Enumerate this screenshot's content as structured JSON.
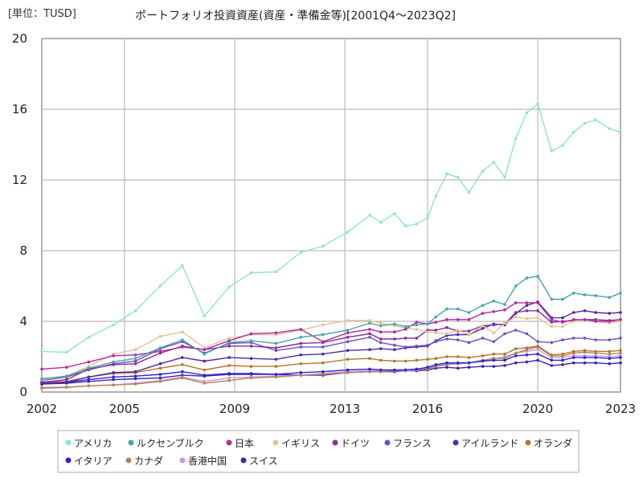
{
  "chart_data": {
    "type": "line",
    "unit_label": "[単位：TUSD]",
    "title": "ポートフォリオ投資資産(資産・準備金等)[2001Q4～2023Q2]",
    "xlim": [
      2002,
      2023
    ],
    "ylim": [
      0,
      20
    ],
    "x_ticks": [
      2002,
      2005,
      2009,
      2013,
      2016,
      2020,
      2023
    ],
    "x_tick_labels": [
      "2002",
      "2005",
      "2009",
      "2013",
      "2016",
      "2020",
      "2023"
    ],
    "y_ticks": [
      0,
      4,
      8,
      12,
      16,
      20
    ],
    "y_tick_labels": [
      "0",
      "4",
      "8",
      "12",
      "16",
      "20"
    ],
    "grid": true,
    "legend_position": "bottom",
    "series": [
      {
        "name": "アメリカ",
        "color": "#90e4cd",
        "x": [
          2002.0,
          2002.9,
          2003.7,
          2004.6,
          2005.4,
          2006.3,
          2007.1,
          2007.9,
          2008.8,
          2009.6,
          2010.5,
          2011.4,
          2012.2,
          2013.1,
          2013.9,
          2014.3,
          2014.8,
          2015.2,
          2015.6,
          2016.0,
          2016.3,
          2016.7,
          2017.1,
          2017.5,
          2018.0,
          2018.4,
          2018.8,
          2019.2,
          2019.6,
          2020.0,
          2020.5,
          2020.9,
          2021.3,
          2021.7,
          2022.1,
          2022.6,
          2023.0
        ],
        "y": [
          2.3,
          2.25,
          3.1,
          3.8,
          4.6,
          6.0,
          7.15,
          4.3,
          5.95,
          6.75,
          6.8,
          7.9,
          8.25,
          9.05,
          10.0,
          9.6,
          10.1,
          9.4,
          9.5,
          9.85,
          11.1,
          12.35,
          12.15,
          11.3,
          12.5,
          13.0,
          12.15,
          14.35,
          15.8,
          16.3,
          13.65,
          13.95,
          14.7,
          15.2,
          15.4,
          14.9,
          14.7
        ]
      },
      {
        "name": "ルクセンブルク",
        "color": "#46a5ad",
        "x": [
          2002.0,
          2002.9,
          2003.7,
          2004.6,
          2005.4,
          2006.3,
          2007.1,
          2007.9,
          2008.8,
          2009.6,
          2010.5,
          2011.4,
          2012.2,
          2013.1,
          2013.9,
          2014.3,
          2014.8,
          2015.2,
          2015.6,
          2016.0,
          2016.3,
          2016.7,
          2017.1,
          2017.5,
          2018.0,
          2018.4,
          2018.8,
          2019.2,
          2019.6,
          2020.0,
          2020.5,
          2020.9,
          2021.3,
          2021.7,
          2022.1,
          2022.6,
          2023.0
        ],
        "y": [
          0.75,
          0.9,
          1.35,
          1.7,
          1.9,
          2.5,
          2.95,
          2.15,
          2.8,
          2.9,
          2.75,
          3.1,
          3.25,
          3.5,
          3.9,
          3.75,
          3.85,
          3.7,
          3.8,
          3.85,
          4.25,
          4.7,
          4.7,
          4.5,
          4.9,
          5.15,
          4.95,
          6.0,
          6.45,
          6.55,
          5.25,
          5.25,
          5.6,
          5.5,
          5.45,
          5.35,
          5.6
        ]
      },
      {
        "name": "日本",
        "color": "#b12aa8",
        "x": [
          2002.0,
          2002.9,
          2003.7,
          2004.6,
          2005.4,
          2006.3,
          2007.1,
          2007.9,
          2008.8,
          2009.6,
          2010.5,
          2011.4,
          2012.2,
          2013.1,
          2013.9,
          2014.3,
          2014.8,
          2015.2,
          2015.6,
          2016.0,
          2016.3,
          2016.7,
          2017.1,
          2017.5,
          2018.0,
          2018.4,
          2018.8,
          2019.2,
          2019.6,
          2020.0,
          2020.5,
          2020.9,
          2021.3,
          2021.7,
          2022.1,
          2022.6,
          2023.0
        ],
        "y": [
          1.3,
          1.4,
          1.7,
          2.05,
          2.1,
          2.3,
          2.55,
          2.4,
          2.9,
          3.3,
          3.35,
          3.55,
          2.85,
          3.35,
          3.55,
          3.4,
          3.4,
          3.55,
          3.95,
          3.85,
          3.95,
          4.1,
          4.1,
          4.1,
          4.45,
          4.55,
          4.65,
          5.05,
          5.05,
          5.05,
          4.1,
          3.95,
          4.1,
          4.1,
          4.0,
          4.0,
          4.1
        ]
      },
      {
        "name": "イギリス",
        "color": "#e3c390",
        "x": [
          2002.0,
          2002.9,
          2003.7,
          2004.6,
          2005.4,
          2006.3,
          2007.1,
          2007.9,
          2008.8,
          2009.6,
          2010.5,
          2011.4,
          2012.2,
          2013.1,
          2013.9,
          2014.3,
          2014.8,
          2015.2,
          2015.6,
          2016.0,
          2016.3,
          2016.7,
          2017.1,
          2017.5,
          2018.0,
          2018.4,
          2018.8,
          2019.2,
          2019.6,
          2020.0,
          2020.5,
          2020.9,
          2021.3,
          2021.7,
          2022.1,
          2022.6,
          2023.0
        ],
        "y": [
          0.7,
          0.9,
          1.45,
          2.15,
          2.4,
          3.15,
          3.4,
          2.5,
          3.05,
          3.25,
          3.25,
          3.5,
          3.8,
          4.05,
          4.05,
          3.9,
          3.75,
          3.6,
          3.55,
          3.4,
          3.35,
          3.3,
          3.5,
          3.25,
          3.75,
          3.35,
          3.9,
          4.25,
          4.15,
          4.2,
          3.7,
          3.7,
          4.0,
          4.1,
          4.0,
          3.9,
          4.0
        ]
      },
      {
        "name": "ドイツ",
        "color": "#8a2b9b",
        "x": [
          2002.0,
          2002.9,
          2003.7,
          2004.6,
          2005.4,
          2006.3,
          2007.1,
          2007.9,
          2008.8,
          2009.6,
          2010.5,
          2011.4,
          2012.2,
          2013.1,
          2013.9,
          2014.3,
          2014.8,
          2015.2,
          2015.6,
          2016.0,
          2016.3,
          2016.7,
          2017.1,
          2017.5,
          2018.0,
          2018.4,
          2018.8,
          2019.2,
          2019.6,
          2020.0,
          2020.5,
          2020.9,
          2021.3,
          2021.7,
          2022.1,
          2022.6,
          2023.0
        ],
        "y": [
          0.55,
          0.7,
          1.3,
          1.55,
          1.6,
          2.2,
          2.6,
          2.4,
          2.6,
          2.6,
          2.5,
          2.75,
          2.8,
          3.1,
          3.3,
          3.0,
          3.0,
          3.05,
          3.05,
          3.5,
          3.5,
          3.65,
          3.45,
          3.45,
          3.75,
          3.8,
          3.85,
          4.5,
          4.6,
          4.6,
          3.95,
          4.0,
          4.05,
          4.1,
          4.1,
          4.05,
          4.1
        ]
      },
      {
        "name": "フランス",
        "color": "#6b52c2",
        "x": [
          2002.0,
          2002.9,
          2003.7,
          2004.6,
          2005.4,
          2006.3,
          2007.1,
          2007.9,
          2008.8,
          2009.6,
          2010.5,
          2011.4,
          2012.2,
          2013.1,
          2013.9,
          2014.3,
          2014.8,
          2015.2,
          2015.6,
          2016.0,
          2016.3,
          2016.7,
          2017.1,
          2017.5,
          2018.0,
          2018.4,
          2018.8,
          2019.2,
          2019.6,
          2020.0,
          2020.5,
          2020.9,
          2021.3,
          2021.7,
          2022.1,
          2022.6,
          2023.0
        ],
        "y": [
          0.65,
          0.85,
          1.25,
          1.6,
          1.75,
          2.45,
          2.85,
          2.2,
          2.75,
          2.8,
          2.35,
          2.55,
          2.55,
          2.85,
          3.1,
          2.8,
          2.65,
          2.55,
          2.6,
          2.65,
          2.85,
          3.0,
          2.95,
          2.8,
          3.05,
          2.85,
          3.3,
          3.5,
          3.3,
          2.85,
          2.8,
          2.95,
          3.05,
          3.05,
          2.95,
          2.95,
          3.05
        ]
      },
      {
        "name": "アイルランド",
        "color": "#4d2aa6",
        "x": [
          2002.0,
          2002.9,
          2003.7,
          2004.6,
          2005.4,
          2006.3,
          2007.1,
          2007.9,
          2008.8,
          2009.6,
          2010.5,
          2011.4,
          2012.2,
          2013.1,
          2013.9,
          2014.3,
          2014.8,
          2015.2,
          2015.6,
          2016.0,
          2016.3,
          2016.7,
          2017.1,
          2017.5,
          2018.0,
          2018.4,
          2018.8,
          2019.2,
          2019.6,
          2020.0,
          2020.5,
          2020.9,
          2021.3,
          2021.7,
          2022.1,
          2022.6,
          2023.0
        ],
        "y": [
          0.5,
          0.55,
          0.85,
          1.1,
          1.15,
          1.6,
          1.95,
          1.75,
          1.95,
          1.9,
          1.85,
          2.1,
          2.15,
          2.35,
          2.4,
          2.45,
          2.4,
          2.5,
          2.55,
          2.6,
          2.9,
          3.2,
          3.25,
          3.25,
          3.6,
          3.85,
          3.8,
          4.45,
          4.9,
          5.1,
          4.2,
          4.2,
          4.5,
          4.6,
          4.5,
          4.45,
          4.5
        ]
      },
      {
        "name": "オランダ",
        "color": "#b8742a",
        "x": [
          2002.0,
          2002.9,
          2003.7,
          2004.6,
          2005.4,
          2006.3,
          2007.1,
          2007.9,
          2008.8,
          2009.6,
          2010.5,
          2011.4,
          2012.2,
          2013.1,
          2013.9,
          2014.3,
          2014.8,
          2015.2,
          2015.6,
          2016.0,
          2016.3,
          2016.7,
          2017.1,
          2017.5,
          2018.0,
          2018.4,
          2018.8,
          2019.2,
          2019.6,
          2020.0,
          2020.5,
          2020.9,
          2021.3,
          2021.7,
          2022.1,
          2022.6,
          2023.0
        ],
        "y": [
          0.55,
          0.6,
          0.85,
          1.05,
          1.1,
          1.35,
          1.55,
          1.25,
          1.5,
          1.45,
          1.45,
          1.6,
          1.65,
          1.85,
          1.9,
          1.8,
          1.75,
          1.75,
          1.8,
          1.85,
          1.9,
          2.0,
          2.0,
          1.95,
          2.05,
          2.15,
          2.15,
          2.45,
          2.5,
          2.6,
          2.1,
          2.15,
          2.3,
          2.35,
          2.3,
          2.3,
          2.35
        ]
      },
      {
        "name": "イタリア",
        "color": "#2e22d9",
        "x": [
          2002.0,
          2002.9,
          2003.7,
          2004.6,
          2005.4,
          2006.3,
          2007.1,
          2007.9,
          2008.8,
          2009.6,
          2010.5,
          2011.4,
          2012.2,
          2013.1,
          2013.9,
          2014.3,
          2014.8,
          2015.2,
          2015.6,
          2016.0,
          2016.3,
          2016.7,
          2017.1,
          2017.5,
          2018.0,
          2018.4,
          2018.8,
          2019.2,
          2019.6,
          2020.0,
          2020.5,
          2020.9,
          2021.3,
          2021.7,
          2022.1,
          2022.6,
          2023.0
        ],
        "y": [
          0.45,
          0.55,
          0.7,
          0.85,
          0.9,
          1.0,
          1.15,
          0.95,
          1.05,
          1.05,
          1.0,
          1.1,
          1.15,
          1.25,
          1.3,
          1.25,
          1.25,
          1.25,
          1.3,
          1.4,
          1.55,
          1.65,
          1.65,
          1.65,
          1.75,
          1.8,
          1.8,
          2.05,
          2.1,
          2.15,
          1.8,
          1.8,
          1.95,
          1.95,
          1.95,
          1.9,
          1.95
        ]
      },
      {
        "name": "カナダ",
        "color": "#b5835a",
        "x": [
          2002.0,
          2002.9,
          2003.7,
          2004.6,
          2005.4,
          2006.3,
          2007.1,
          2007.9,
          2008.8,
          2009.6,
          2010.5,
          2011.4,
          2012.2,
          2013.1,
          2013.9,
          2014.3,
          2014.8,
          2015.2,
          2015.6,
          2016.0,
          2016.3,
          2016.7,
          2017.1,
          2017.5,
          2018.0,
          2018.4,
          2018.8,
          2019.2,
          2019.6,
          2020.0,
          2020.5,
          2020.9,
          2021.3,
          2021.7,
          2022.1,
          2022.6,
          2023.0
        ],
        "y": [
          0.25,
          0.28,
          0.35,
          0.4,
          0.45,
          0.6,
          0.8,
          0.5,
          0.65,
          0.8,
          0.85,
          0.95,
          1.0,
          1.1,
          1.15,
          1.15,
          1.2,
          1.25,
          1.3,
          1.3,
          1.45,
          1.55,
          1.6,
          1.65,
          1.8,
          1.9,
          1.9,
          2.2,
          2.4,
          2.55,
          2.05,
          2.05,
          2.2,
          2.25,
          2.2,
          2.15,
          2.2
        ]
      },
      {
        "name": "香港中国",
        "color": "#c79ae0",
        "x": [
          2002.0,
          2002.9,
          2003.7,
          2004.6,
          2005.4,
          2006.3,
          2007.1,
          2007.9,
          2008.8,
          2009.6,
          2010.5,
          2011.4,
          2012.2,
          2013.1,
          2013.9,
          2014.3,
          2014.8,
          2015.2,
          2015.6,
          2016.0,
          2016.3,
          2016.7,
          2017.1,
          2017.5,
          2018.0,
          2018.4,
          2018.8,
          2019.2,
          2019.6,
          2020.0,
          2020.5,
          2020.9,
          2021.3,
          2021.7,
          2022.1,
          2022.6,
          2023.0
        ],
        "y": [
          0.2,
          0.25,
          0.35,
          0.4,
          0.5,
          0.65,
          0.85,
          0.6,
          0.8,
          0.85,
          0.9,
          0.95,
          1.05,
          1.15,
          1.2,
          1.2,
          1.2,
          1.2,
          1.25,
          1.35,
          1.5,
          1.6,
          1.6,
          1.65,
          1.8,
          1.85,
          2.0,
          2.2,
          2.3,
          2.4,
          1.95,
          1.95,
          2.05,
          2.05,
          2.05,
          2.0,
          2.05
        ]
      },
      {
        "name": "スイス",
        "color": "#3f22b0",
        "x": [
          2002.0,
          2002.9,
          2003.7,
          2004.6,
          2005.4,
          2006.3,
          2007.1,
          2007.9,
          2008.8,
          2009.6,
          2010.5,
          2011.4,
          2012.2,
          2013.1,
          2013.9,
          2014.3,
          2014.8,
          2015.2,
          2015.6,
          2016.0,
          2016.3,
          2016.7,
          2017.1,
          2017.5,
          2018.0,
          2018.4,
          2018.8,
          2019.2,
          2019.6,
          2020.0,
          2020.5,
          2020.9,
          2021.3,
          2021.7,
          2022.1,
          2022.6,
          2023.0
        ],
        "y": [
          0.45,
          0.5,
          0.6,
          0.7,
          0.75,
          0.8,
          0.95,
          0.9,
          1.0,
          1.0,
          1.0,
          0.95,
          0.95,
          1.1,
          1.15,
          1.15,
          1.15,
          1.2,
          1.2,
          1.25,
          1.35,
          1.4,
          1.35,
          1.4,
          1.45,
          1.45,
          1.5,
          1.65,
          1.7,
          1.8,
          1.5,
          1.55,
          1.65,
          1.65,
          1.65,
          1.6,
          1.65
        ]
      }
    ]
  }
}
